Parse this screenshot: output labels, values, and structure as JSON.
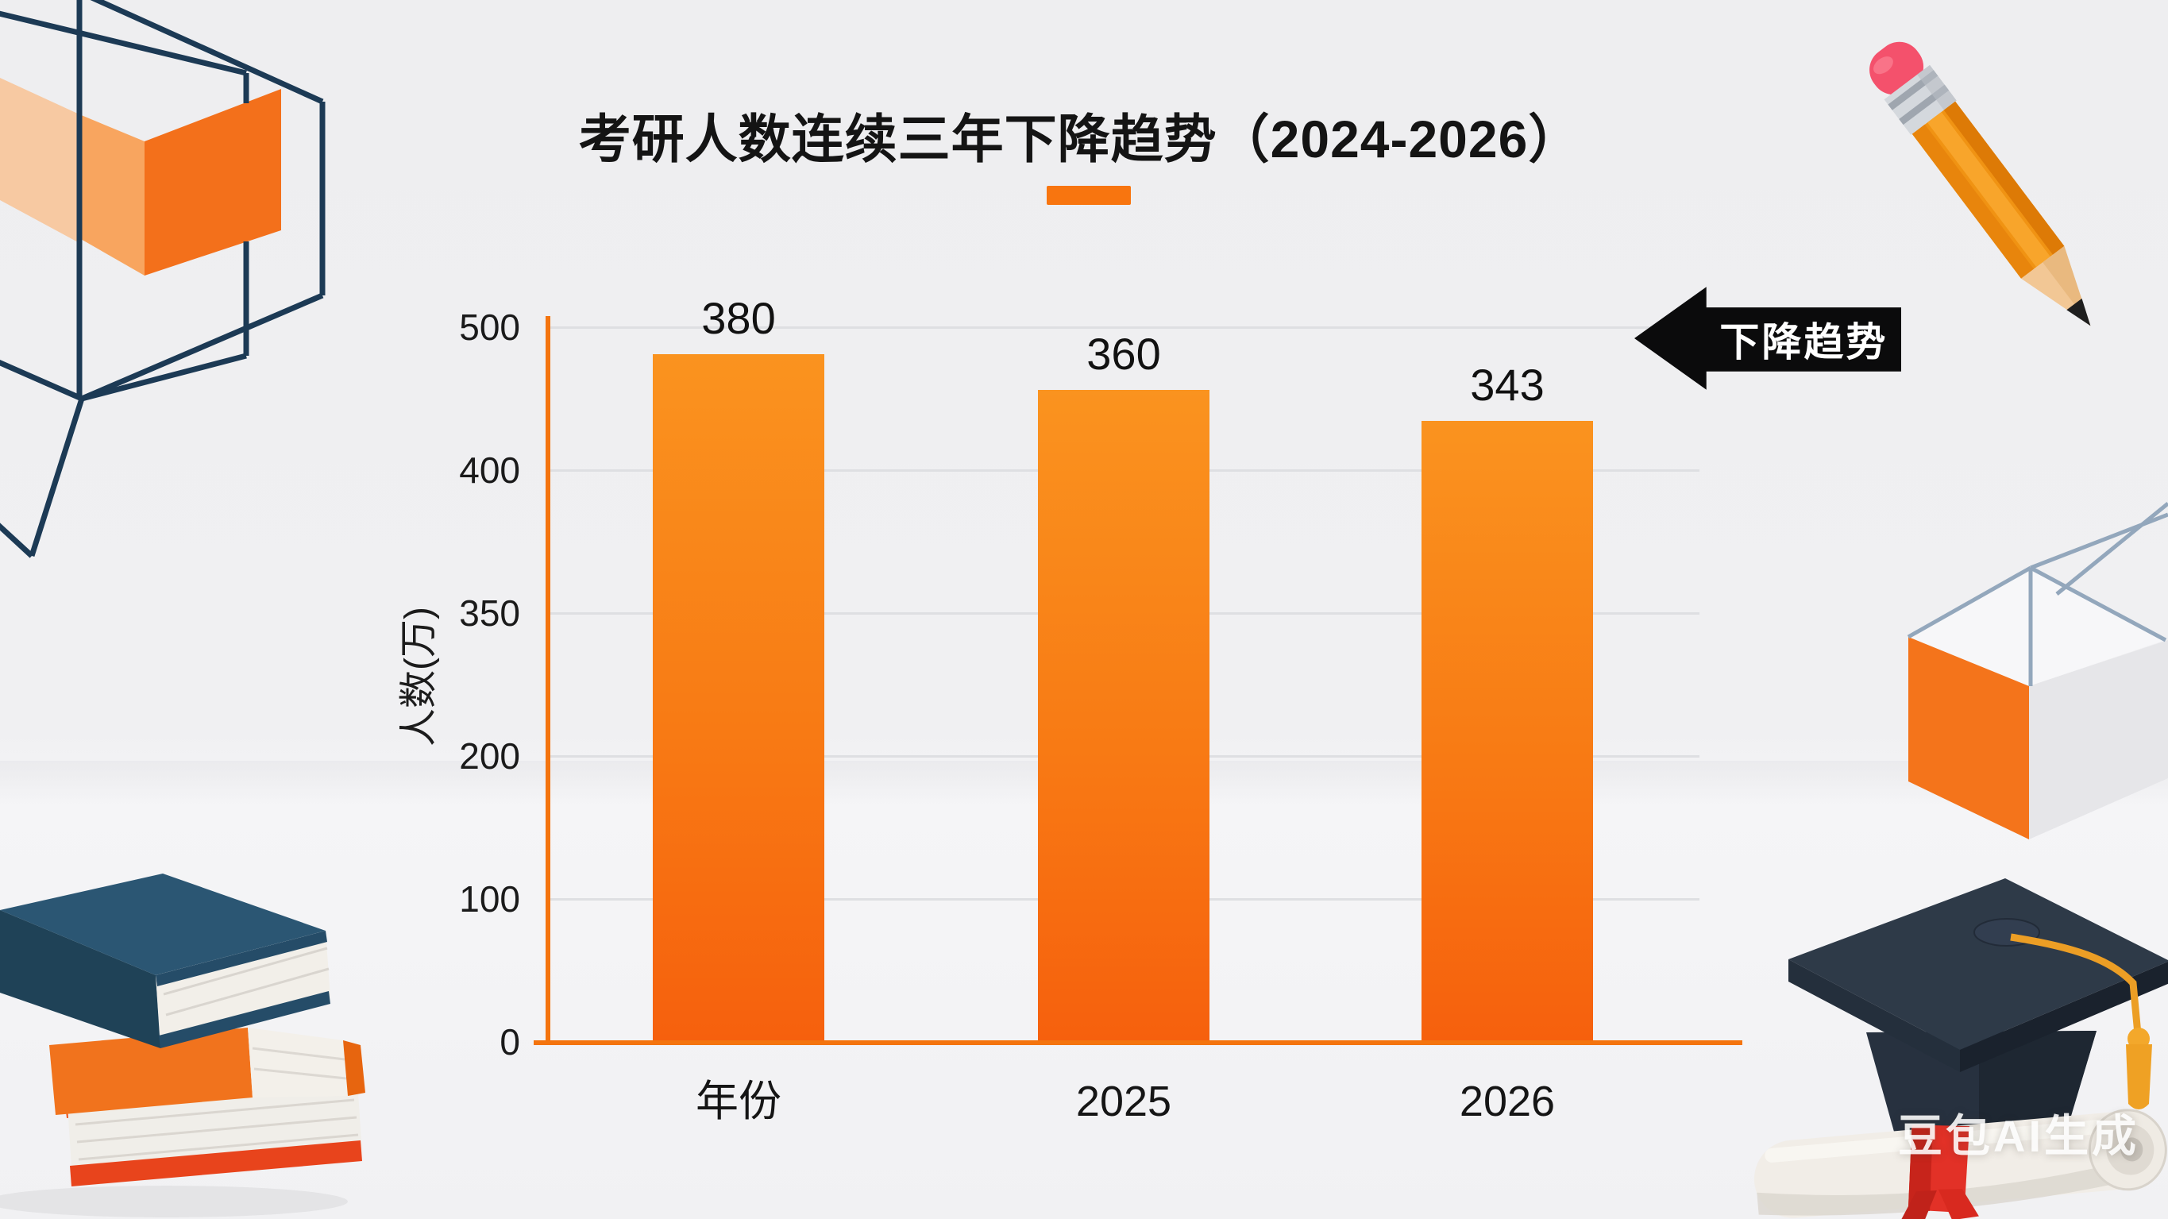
{
  "page": {
    "kind": "infographic-poster"
  },
  "chart_data": {
    "type": "bar",
    "title": "考研人数连续三年下降趋势（2024-2026）",
    "categories": [
      "年份",
      "2025",
      "2026"
    ],
    "values": [
      380,
      360,
      343
    ],
    "xlabel": "",
    "ylabel": "人数(万)",
    "yticks": [
      0,
      100,
      200,
      350,
      400,
      500
    ],
    "ylim": [
      0,
      500
    ],
    "grid": true,
    "legend_position": "none",
    "bar_color_top": "#FA931F",
    "bar_color_bottom": "#F6600D",
    "axis_color": "#F4740E",
    "gridline_color": "#DEDFE2",
    "value_labels": [
      "380",
      "360",
      "343"
    ]
  },
  "annotation_badge": {
    "label": "下降趋势",
    "shape": "left-arrow",
    "background": "#0B0B0C",
    "text_color": "#FFFFFF"
  },
  "watermark": {
    "label": "豆包AI生成"
  },
  "colors": {
    "accent_orange": "#F8750F",
    "title_black": "#141414",
    "background": "#F0F0F2",
    "wireframe_navy": "#1C3A55"
  },
  "decorations": [
    {
      "icon": "wireframe-cube-orange-box-icon",
      "position": "top-left"
    },
    {
      "icon": "pencil-icon",
      "position": "top-right"
    },
    {
      "icon": "open-box-icon",
      "position": "middle-right"
    },
    {
      "icon": "book-stack-icon",
      "position": "bottom-left"
    },
    {
      "icon": "graduation-cap-diploma-icon",
      "position": "bottom-right"
    }
  ]
}
